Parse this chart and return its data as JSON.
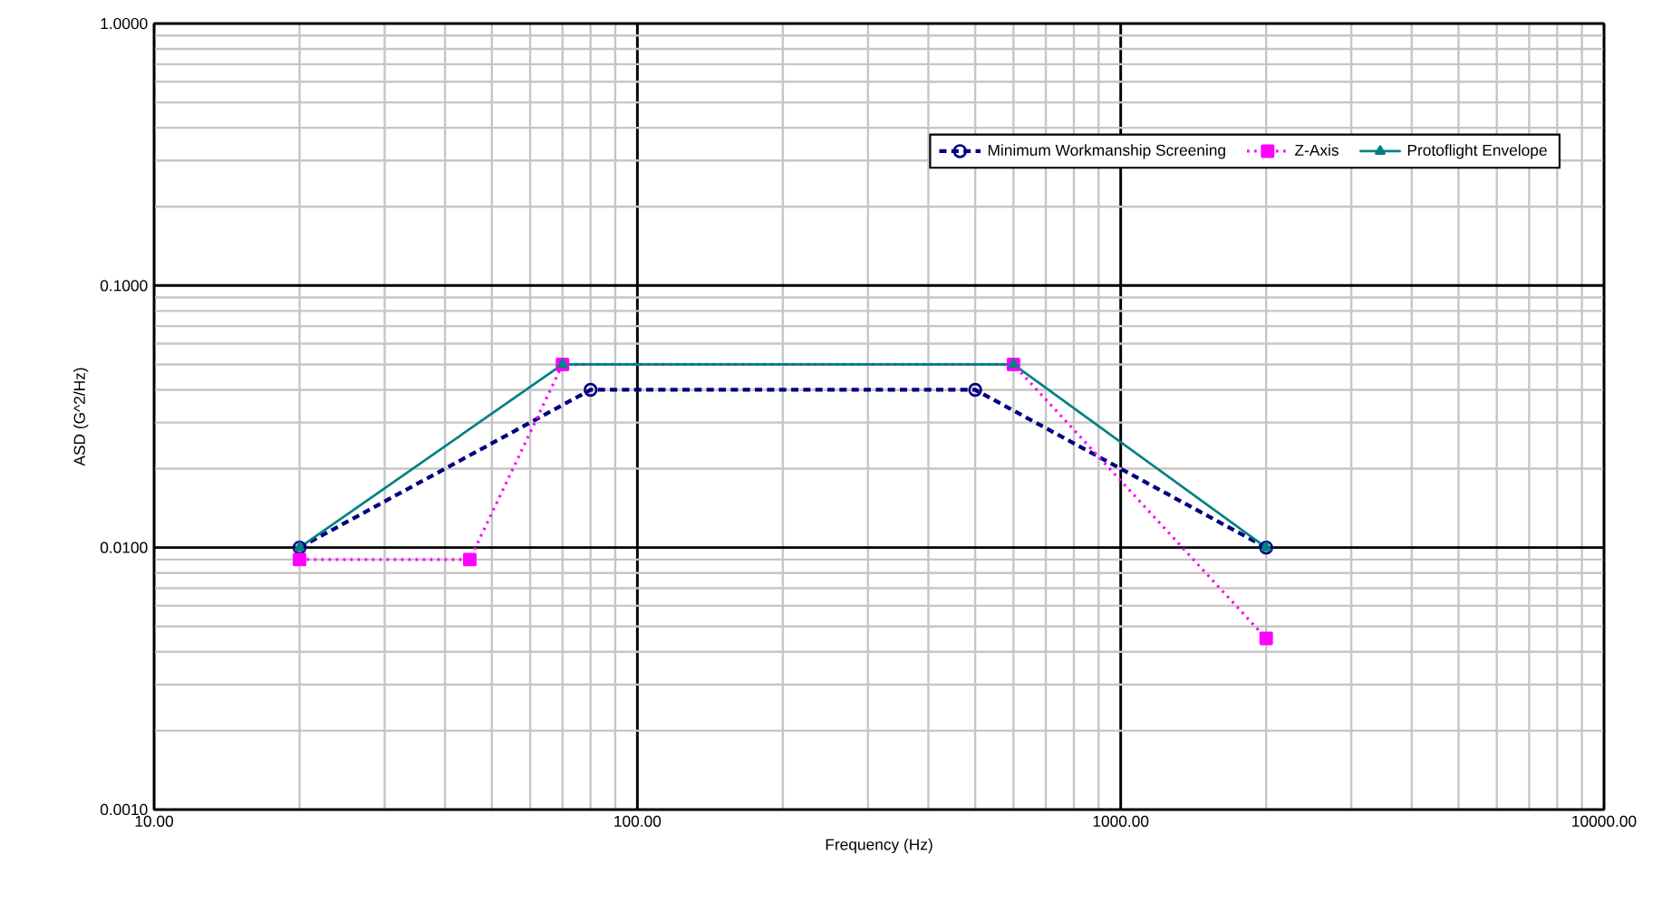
{
  "chart_data": {
    "type": "line",
    "xlabel": "Frequency (Hz)",
    "ylabel": "ASD (G^2/Hz)",
    "log": "xy",
    "grid": true,
    "legend": "top right",
    "xlim": [
      10,
      10000
    ],
    "xticks": [
      {
        "value": 10,
        "label": "10.00"
      },
      {
        "value": 100,
        "label": "100.00"
      },
      {
        "value": 1000,
        "label": "1000.00"
      },
      {
        "value": 10000,
        "label": "10000.00"
      }
    ],
    "ylim": [
      0.001,
      1
    ],
    "yticks": [
      {
        "value": 0.001,
        "label": "0.0010"
      },
      {
        "value": 0.01,
        "label": "0.0100"
      },
      {
        "value": 0.1,
        "label": "0.1000"
      },
      {
        "value": 1,
        "label": "1.0000"
      }
    ],
    "series": [
      {
        "name": "Minimum Workmanship Screening",
        "color": "#000080",
        "marker": "circle",
        "line_style": "dashed",
        "x": [
          20,
          80,
          500,
          2000
        ],
        "values": [
          0.01,
          0.04,
          0.04,
          0.01
        ]
      },
      {
        "name": "Z-Axis",
        "color": "#ff00ff",
        "marker": "square",
        "line_style": "dotted",
        "x": [
          20,
          45,
          70,
          600,
          2000
        ],
        "values": [
          0.009,
          0.009,
          0.05,
          0.05,
          0.0045
        ]
      },
      {
        "name": "Protoflight Envelope",
        "color": "#008080",
        "marker": "triangle",
        "line_style": "solid",
        "x": [
          20,
          70,
          600,
          2000
        ],
        "values": [
          0.01,
          0.05,
          0.05,
          0.01
        ]
      }
    ]
  }
}
